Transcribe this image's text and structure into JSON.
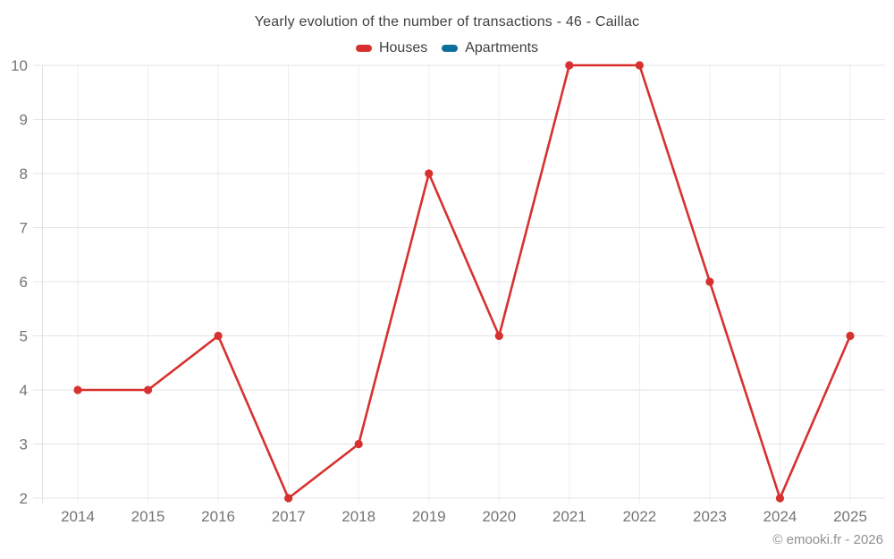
{
  "title": "Yearly evolution of the number of transactions - 46 - Caillac",
  "footer": {
    "text": "© emooki.fr - 2026"
  },
  "colors": {
    "houses": "#d7312f",
    "apartments": "#0e6f9d",
    "grid_horizontal": "#e4e4e4",
    "grid_vertical": "#ededed",
    "axis_line": "#e0e0e0",
    "tick_label": "#757575",
    "title_text": "#3f3f3f",
    "footer_text": "#8f8f8f"
  },
  "chart_data": {
    "type": "line",
    "title": "Yearly evolution of the number of transactions - 46 - Caillac",
    "x": [
      "2014",
      "2015",
      "2016",
      "2017",
      "2018",
      "2019",
      "2020",
      "2021",
      "2022",
      "2023",
      "2024",
      "2025"
    ],
    "series": [
      {
        "name": "Houses",
        "color": "#d7312f",
        "values": [
          4,
          4,
          5,
          2,
          3,
          8,
          5,
          10,
          10,
          6,
          2,
          5
        ]
      },
      {
        "name": "Apartments",
        "color": "#0e6f9d",
        "values": []
      }
    ],
    "xlabel": "",
    "ylabel": "",
    "ylim": [
      2,
      10
    ],
    "yticks": [
      2,
      3,
      4,
      5,
      6,
      7,
      8,
      9,
      10
    ],
    "grid": true,
    "legend_position": "top",
    "marker": "circle"
  }
}
